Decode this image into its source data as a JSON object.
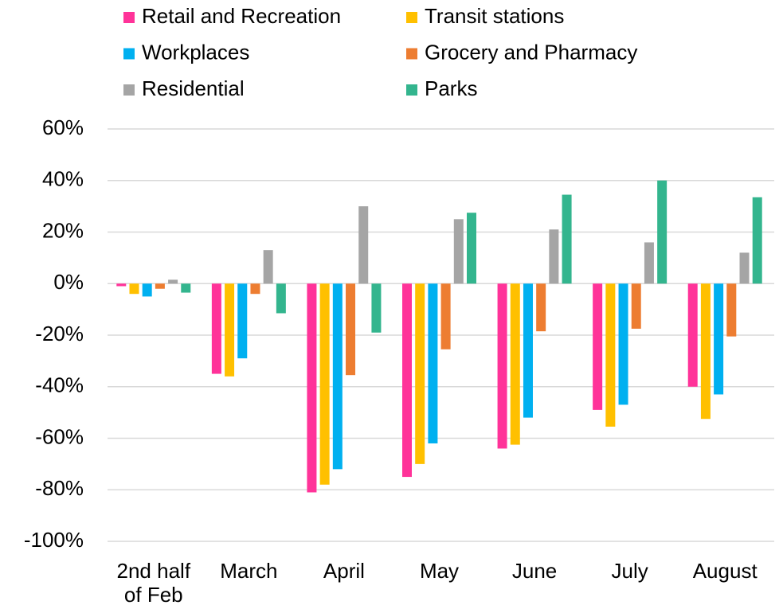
{
  "chart_data": {
    "type": "bar",
    "categories": [
      "2nd half of Feb",
      "March",
      "April",
      "May",
      "June",
      "July",
      "August"
    ],
    "series": [
      {
        "name": "Retail and Recreation",
        "color": "#ff3399",
        "values": [
          -1,
          -35,
          -81,
          -75,
          -64,
          -49,
          -40
        ]
      },
      {
        "name": "Transit stations",
        "color": "#ffc000",
        "values": [
          -4,
          -36,
          -78,
          -70,
          -62.5,
          -55.5,
          -52.5
        ]
      },
      {
        "name": "Workplaces",
        "color": "#00b0f0",
        "values": [
          -5,
          -29,
          -72,
          -62,
          -52,
          -47,
          -43
        ]
      },
      {
        "name": "Grocery and Pharmacy",
        "color": "#ed7d31",
        "values": [
          -2,
          -4,
          -35.5,
          -25.5,
          -18.5,
          -17.5,
          -20.5
        ]
      },
      {
        "name": "Residential",
        "color": "#a5a5a5",
        "values": [
          1.5,
          13,
          30,
          25,
          21,
          16,
          12
        ]
      },
      {
        "name": "Parks",
        "color": "#33b58e",
        "values": [
          -3.5,
          -11.5,
          -19,
          27.5,
          34.5,
          40,
          33.5
        ]
      }
    ],
    "ylim": [
      -100,
      60
    ],
    "yticks": [
      {
        "value": -100,
        "label": "-100%"
      },
      {
        "value": -80,
        "label": "-80%"
      },
      {
        "value": -60,
        "label": "-60%"
      },
      {
        "value": -40,
        "label": "-40%"
      },
      {
        "value": -20,
        "label": "-20%"
      },
      {
        "value": 0,
        "label": "0%"
      },
      {
        "value": 20,
        "label": "20%"
      },
      {
        "value": 40,
        "label": "40%"
      },
      {
        "value": 60,
        "label": "60%"
      }
    ],
    "grid": true,
    "legend": "top"
  }
}
